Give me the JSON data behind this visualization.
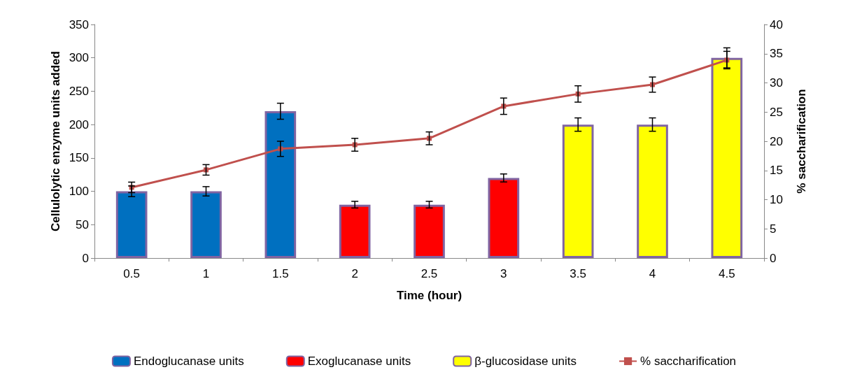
{
  "chart_data": {
    "type": "bar",
    "stacked": true,
    "grid": false,
    "legend": "bottom",
    "xlabel": "Time (hour)",
    "ylabel": "Cellulolytic enzyme units added",
    "y2label": "% saccharification",
    "categories": [
      "0.5",
      "1",
      "1.5",
      "2",
      "2.5",
      "3",
      "3.5",
      "4",
      "4.5"
    ],
    "ylim": [
      0,
      350
    ],
    "yticks": [
      0,
      50,
      100,
      150,
      200,
      250,
      300,
      350
    ],
    "y2lim": [
      0,
      40
    ],
    "y2ticks": [
      0,
      5,
      10,
      15,
      20,
      25,
      30,
      35,
      40
    ],
    "series": [
      {
        "name": "Endoglucanase units",
        "color": "#0070c0",
        "values": [
          100,
          100,
          220,
          null,
          null,
          null,
          null,
          null,
          null
        ],
        "errors": [
          8,
          7,
          12,
          null,
          null,
          null,
          null,
          null,
          null
        ]
      },
      {
        "name": "Exoglucanase units",
        "color": "#ff0000",
        "values": [
          null,
          null,
          null,
          80,
          80,
          120,
          null,
          null,
          null
        ],
        "errors": [
          null,
          null,
          null,
          5,
          5,
          6,
          null,
          null,
          null
        ]
      },
      {
        "name": "β-glucosidase units",
        "color": "#ffff00",
        "values": [
          null,
          null,
          null,
          null,
          null,
          null,
          200,
          200,
          300
        ],
        "errors": [
          null,
          null,
          null,
          null,
          null,
          null,
          10,
          10,
          15
        ]
      },
      {
        "name": "% saccharification",
        "type": "line",
        "axis": "y2",
        "color": "#c0504d",
        "marker": "square",
        "values": [
          12.1,
          15.1,
          18.7,
          19.4,
          20.5,
          26.0,
          28.1,
          29.7,
          33.9
        ],
        "errors": [
          0.9,
          0.9,
          1.3,
          1.1,
          1.1,
          1.4,
          1.4,
          1.3,
          1.5
        ]
      }
    ]
  }
}
